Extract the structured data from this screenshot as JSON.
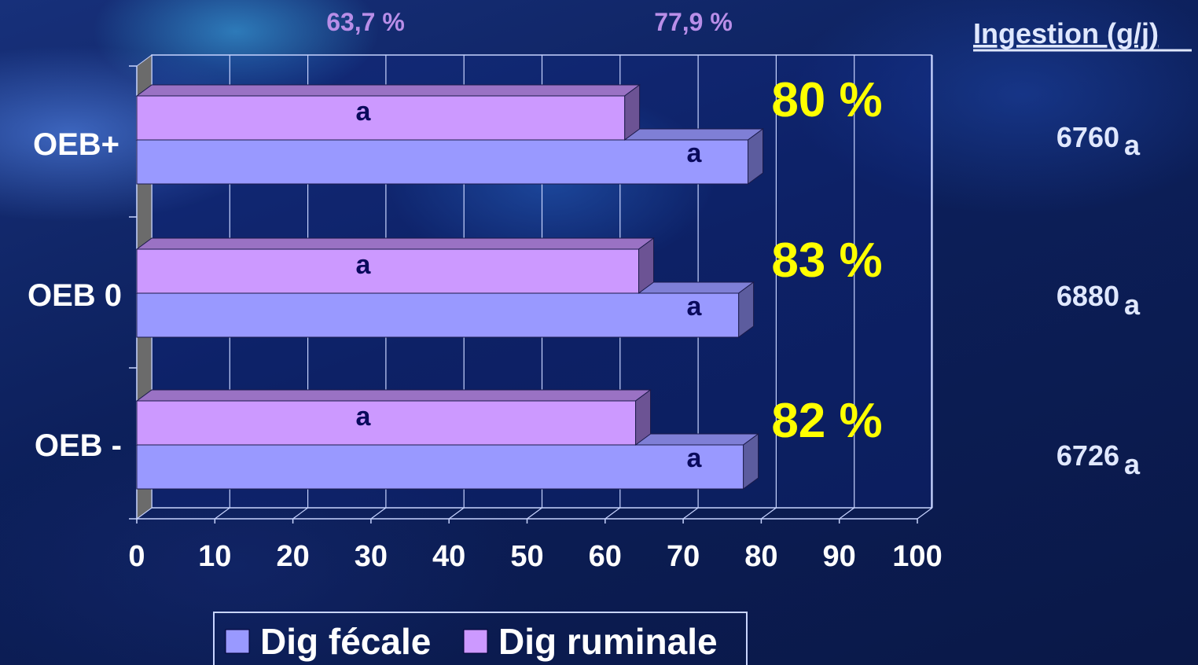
{
  "chart_data": {
    "type": "bar",
    "orientation": "horizontal",
    "categories": [
      "OEB+",
      "OEB 0",
      "OEB -"
    ],
    "series": [
      {
        "name": "Dig ruminale",
        "values": [
          62.5,
          64.3,
          63.9
        ],
        "color": "#cc99ff",
        "labels": [
          "a",
          "a",
          "a"
        ]
      },
      {
        "name": "Dig fécale",
        "values": [
          78.3,
          77.1,
          77.7
        ],
        "color": "#9999ff",
        "labels": [
          "a",
          "a",
          "a"
        ]
      }
    ],
    "xlim": [
      0,
      100
    ],
    "xticks": [
      "0",
      "10",
      "20",
      "30",
      "40",
      "50",
      "60",
      "70",
      "80",
      "90",
      "100"
    ],
    "grid": true,
    "legend": "bottom",
    "annotations": {
      "ratios": [
        "80 %",
        "83 %",
        "82 %"
      ],
      "top_labels": [
        "63,7 %",
        "77,9 %"
      ]
    },
    "ingestion": {
      "title": "Ingestion (g/j)",
      "values": [
        "6760",
        "6880",
        "6726"
      ],
      "letters": [
        "a",
        "a",
        "a"
      ]
    }
  }
}
